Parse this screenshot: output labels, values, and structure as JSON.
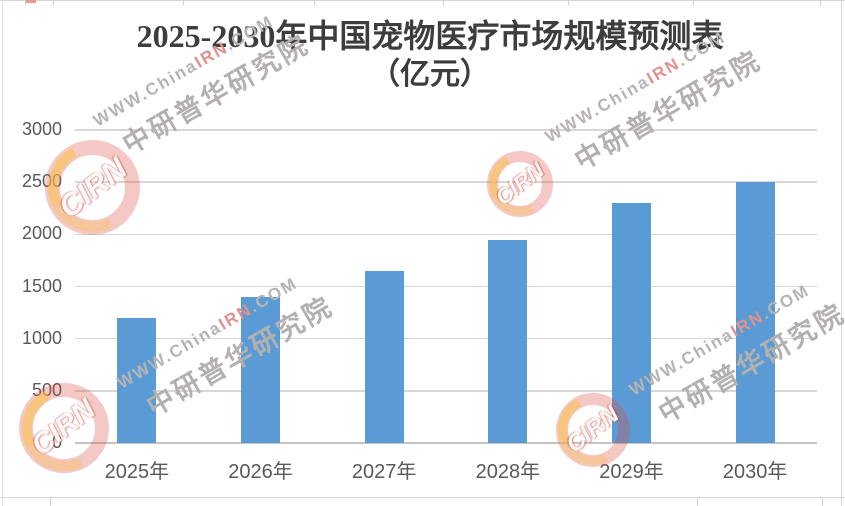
{
  "title": {
    "line1": "2025-2030年中国宠物医疗市场规模预测表",
    "line2": "（亿元）"
  },
  "watermark": {
    "url_prefix": "WWW.China",
    "url_accent": "IRN",
    "url_suffix": ".COM",
    "brand": "中研普华研究院",
    "logo_text": "CIRN",
    "text_color": "#b5b3b1",
    "accent_color": "#e2918c",
    "logo_ring_color": "#d9493c",
    "logo_crescent_color": "#f8c454"
  },
  "chart_data": {
    "type": "bar",
    "title": "2025-2030年中国宠物医疗市场规模预测表（亿元）",
    "unit": "亿元",
    "categories": [
      "2025年",
      "2026年",
      "2027年",
      "2028年",
      "2029年",
      "2030年"
    ],
    "values": [
      1200,
      1400,
      1650,
      1950,
      2300,
      2500
    ],
    "yticks": [
      0,
      500,
      1000,
      1500,
      2000,
      2500,
      3000
    ],
    "ylim": [
      0,
      3000
    ],
    "xlabel": "",
    "ylabel": "",
    "grid": true,
    "legend": false,
    "bar_color": "#5b9bd5",
    "gridline_color": "#d9d7d5",
    "axis_color": "#c6c4c2",
    "tick_label_color": "#595959"
  }
}
